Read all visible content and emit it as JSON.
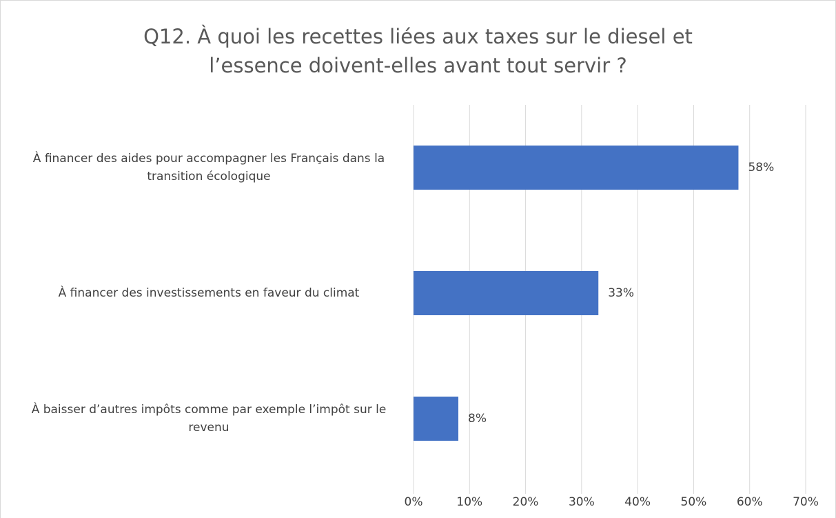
{
  "chart_data": {
    "type": "bar",
    "orientation": "horizontal",
    "title": "Q12. À quoi les recettes liées aux taxes sur le diesel et l’essence doivent-elles avant tout servir ?",
    "categories": [
      "À financer des aides pour accompagner les Français dans la transition écologique",
      "À financer des investissements en faveur du climat",
      "À baisser d’autres impôts comme par exemple l’impôt sur le revenu"
    ],
    "values": [
      58,
      33,
      8
    ],
    "value_labels": [
      "58%",
      "33%",
      "8%"
    ],
    "color": "#4472c4",
    "xlim": [
      0,
      70
    ],
    "xticks": [
      {
        "value": 0,
        "label": "0%"
      },
      {
        "value": 10,
        "label": "10%"
      },
      {
        "value": 20,
        "label": "20%"
      },
      {
        "value": 30,
        "label": "30%"
      },
      {
        "value": 40,
        "label": "40%"
      },
      {
        "value": 50,
        "label": "50%"
      },
      {
        "value": 60,
        "label": "60%"
      },
      {
        "value": 70,
        "label": "70%"
      }
    ],
    "grid": true
  }
}
